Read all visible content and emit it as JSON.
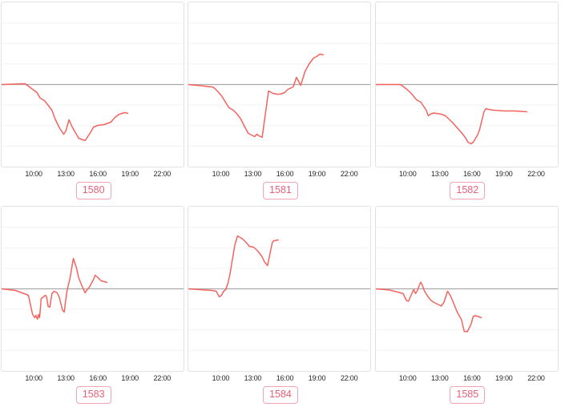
{
  "page": {
    "background": "#ffffff"
  },
  "style": {
    "line_color": "#f4635e",
    "baseline_color": "#a9a9a9",
    "grid_color": "#f3f3f3",
    "panel_border": "#e2e2e2",
    "chip_text_color": "#e75f78",
    "chip_border_color": "#f2a4b5",
    "tick_text_color": "#262626"
  },
  "axis": {
    "tick_labels": [
      "10:00",
      "13:00",
      "16:00",
      "19:00",
      "22:00"
    ],
    "tick_hours": [
      10,
      13,
      16,
      19,
      22
    ],
    "x_domain_hours": [
      7,
      24
    ],
    "ylim": [
      -1.025,
      1.025
    ],
    "grid_divisions": 8,
    "baseline_value": 0,
    "grid": true,
    "y_axis_labels_visible": false
  },
  "chart_data": [
    {
      "id": "1580",
      "label": "1580",
      "type": "line",
      "x_unit": "time_of_day_hours",
      "y_unit": "relative_change_vs_baseline",
      "x": [
        7.0,
        9.2,
        9.5,
        10.3,
        10.6,
        11.0,
        11.3,
        11.7,
        12.0,
        12.4,
        12.8,
        13.0,
        13.3,
        13.6,
        14.2,
        14.8,
        15.3,
        15.6,
        16.0,
        16.6,
        17.2,
        17.6,
        18.0,
        18.5,
        18.8
      ],
      "y": [
        0,
        0.01,
        -0.02,
        -0.1,
        -0.17,
        -0.2,
        -0.25,
        -0.32,
        -0.43,
        -0.54,
        -0.62,
        -0.58,
        -0.44,
        -0.53,
        -0.67,
        -0.7,
        -0.6,
        -0.53,
        -0.51,
        -0.5,
        -0.47,
        -0.41,
        -0.37,
        -0.35,
        -0.36
      ]
    },
    {
      "id": "1581",
      "label": "1581",
      "type": "line",
      "x_unit": "time_of_day_hours",
      "y_unit": "relative_change_vs_baseline",
      "x": [
        7.0,
        9.2,
        9.4,
        9.7,
        10.1,
        10.8,
        11.2,
        11.5,
        11.9,
        12.2,
        12.6,
        12.9,
        13.2,
        13.4,
        13.6,
        13.9,
        14.5,
        14.9,
        15.3,
        15.6,
        16.0,
        16.3,
        16.8,
        17.1,
        17.5,
        17.9,
        18.3,
        18.7,
        19.0,
        19.3,
        19.6
      ],
      "y": [
        0,
        -0.03,
        -0.04,
        -0.08,
        -0.14,
        -0.29,
        -0.32,
        -0.36,
        -0.43,
        -0.51,
        -0.61,
        -0.63,
        -0.65,
        -0.62,
        -0.64,
        -0.66,
        -0.08,
        -0.11,
        -0.12,
        -0.12,
        -0.1,
        -0.06,
        -0.03,
        0.09,
        -0.01,
        0.16,
        0.26,
        0.33,
        0.35,
        0.38,
        0.37
      ]
    },
    {
      "id": "1582",
      "label": "1582",
      "type": "line",
      "x_unit": "time_of_day_hours",
      "y_unit": "relative_change_vs_baseline",
      "x": [
        7.0,
        9.3,
        9.9,
        10.3,
        10.8,
        11.2,
        11.7,
        11.9,
        12.1,
        12.4,
        13.1,
        13.5,
        13.9,
        14.2,
        14.6,
        15.0,
        15.4,
        15.6,
        15.9,
        16.1,
        16.5,
        16.7,
        17.1,
        17.3,
        17.5,
        18.0,
        19.0,
        20.0,
        21.1
      ],
      "y": [
        0,
        0,
        -0.06,
        -0.11,
        -0.19,
        -0.22,
        -0.32,
        -0.39,
        -0.37,
        -0.355,
        -0.37,
        -0.39,
        -0.44,
        -0.48,
        -0.54,
        -0.6,
        -0.67,
        -0.72,
        -0.74,
        -0.72,
        -0.63,
        -0.56,
        -0.34,
        -0.3,
        -0.31,
        -0.32,
        -0.33,
        -0.33,
        -0.34
      ]
    },
    {
      "id": "1583",
      "label": "1583",
      "type": "line",
      "x_unit": "time_of_day_hours",
      "y_unit": "relative_change_vs_baseline",
      "x": [
        7.0,
        8.3,
        9.3,
        9.5,
        9.9,
        10.1,
        10.2,
        10.35,
        10.45,
        10.55,
        10.7,
        10.9,
        11.1,
        11.2,
        11.35,
        11.5,
        11.7,
        11.9,
        12.2,
        12.4,
        12.7,
        12.85,
        13.1,
        13.4,
        13.7,
        14.0,
        14.2,
        14.5,
        14.8,
        15.0,
        15.2,
        15.6,
        15.75,
        16.0,
        16.3,
        16.6,
        16.85
      ],
      "y": [
        0,
        -0.02,
        -0.07,
        -0.08,
        -0.32,
        -0.36,
        -0.33,
        -0.38,
        -0.32,
        -0.36,
        -0.12,
        -0.1,
        -0.08,
        -0.1,
        -0.22,
        -0.23,
        -0.06,
        -0.03,
        -0.05,
        -0.11,
        -0.27,
        -0.29,
        -0.03,
        0.14,
        0.38,
        0.26,
        0.14,
        0.04,
        -0.05,
        -0.01,
        0.02,
        0.12,
        0.17,
        0.14,
        0.1,
        0.09,
        0.08
      ]
    },
    {
      "id": "1584",
      "label": "1584",
      "type": "line",
      "x_unit": "time_of_day_hours",
      "y_unit": "relative_change_vs_baseline",
      "x": [
        7.0,
        9.2,
        9.6,
        9.9,
        10.1,
        10.3,
        10.5,
        10.7,
        10.9,
        11.1,
        11.35,
        11.6,
        11.85,
        12.0,
        12.4,
        12.7,
        13.1,
        13.5,
        13.9,
        14.1,
        14.4,
        14.6,
        14.85,
        15.0,
        15.4
      ],
      "y": [
        0,
        -0.02,
        -0.03,
        -0.1,
        -0.08,
        -0.03,
        -0.01,
        0.07,
        0.19,
        0.35,
        0.55,
        0.66,
        0.64,
        0.63,
        0.58,
        0.53,
        0.52,
        0.47,
        0.4,
        0.34,
        0.29,
        0.42,
        0.58,
        0.6,
        0.61
      ]
    },
    {
      "id": "1585",
      "label": "1585",
      "type": "line",
      "x_unit": "time_of_day_hours",
      "y_unit": "relative_change_vs_baseline",
      "x": [
        7.0,
        8.3,
        9.3,
        9.55,
        9.85,
        10.05,
        10.3,
        10.45,
        10.55,
        10.7,
        10.85,
        11.05,
        11.2,
        11.35,
        11.55,
        11.85,
        12.15,
        12.5,
        12.9,
        13.1,
        13.35,
        13.7,
        14.0,
        14.25,
        14.6,
        15.0,
        15.25,
        15.55,
        15.9,
        16.1,
        16.3,
        16.55,
        16.85
      ],
      "y": [
        0,
        -0.015,
        -0.05,
        -0.06,
        -0.145,
        -0.155,
        -0.075,
        -0.03,
        -0.01,
        -0.06,
        -0.03,
        0.04,
        0.085,
        0.04,
        -0.03,
        -0.095,
        -0.145,
        -0.175,
        -0.2,
        -0.215,
        -0.17,
        -0.03,
        -0.095,
        -0.175,
        -0.29,
        -0.385,
        -0.53,
        -0.535,
        -0.44,
        -0.345,
        -0.335,
        -0.345,
        -0.36
      ]
    }
  ]
}
